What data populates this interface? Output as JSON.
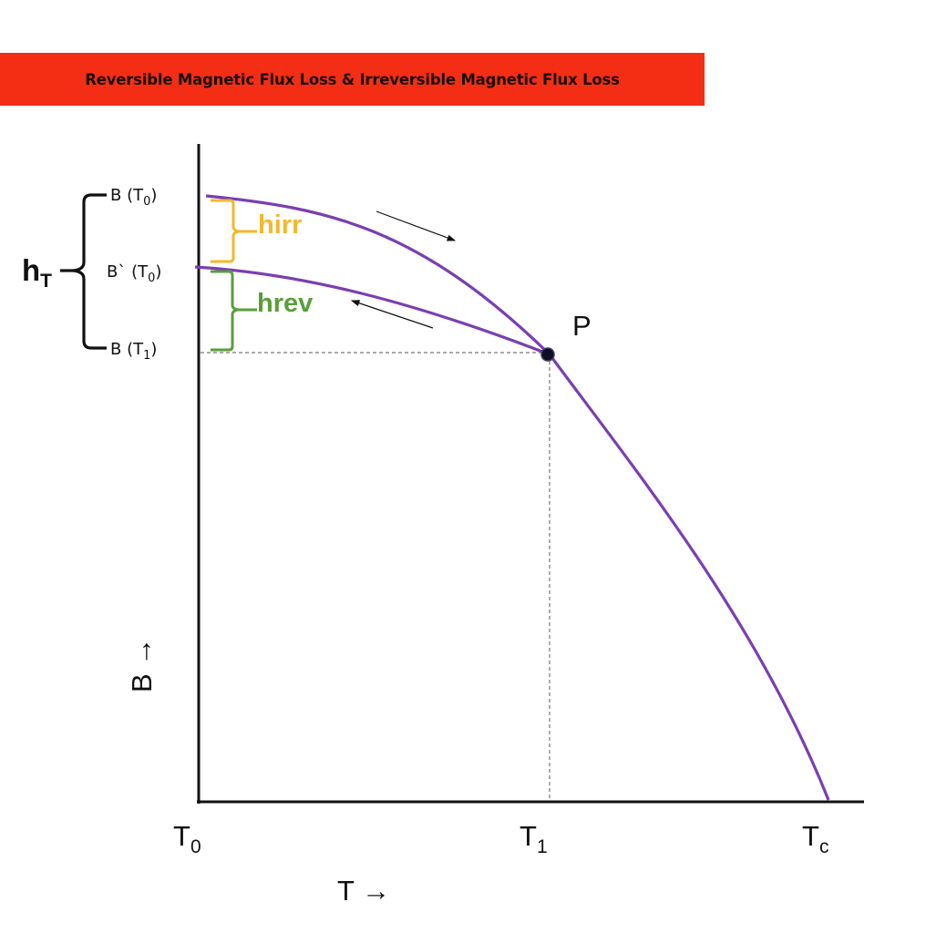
{
  "title": "Reversible Magnetic Flux Loss & Irreversible Magnetic Flux Loss",
  "colors": {
    "banner": "#f42e14",
    "curve": "#7a3fb0",
    "hirr": "#f4b82e",
    "hrev": "#5a9e3a",
    "axis": "#111111"
  },
  "labels": {
    "hT_main": "h",
    "hT_sub": "T",
    "b_t0_main": "B (T",
    "b_t0_sub": "0",
    "b_prime_t0_main": "B` (T",
    "b_prime_t0_sub": "0",
    "b_t1_main": "B (T",
    "b_t1_sub": "1",
    "close_paren": ")",
    "hirr": "hirr",
    "hrev": "hrev",
    "point": "P",
    "x_axis": "T →",
    "y_axis": "B →",
    "t0_main": "T",
    "t0_sub": "0",
    "t1_main": "T",
    "t1_sub": "1",
    "tc_main": "T",
    "tc_sub": "c"
  }
}
